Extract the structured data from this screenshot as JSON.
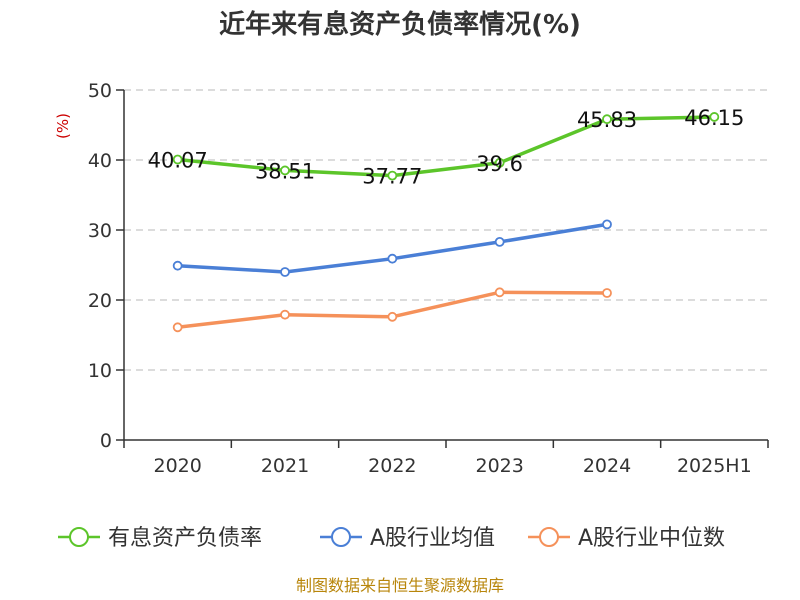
{
  "chart_data": {
    "type": "line",
    "title": "近年来有息资产负债率情况(%)",
    "ylabel": "(%)",
    "xlabel": "",
    "ylim": [
      0,
      50
    ],
    "yticks": [
      0,
      10,
      20,
      30,
      40,
      50
    ],
    "categories": [
      "2020",
      "2021",
      "2022",
      "2023",
      "2024",
      "2025H1"
    ],
    "grid": "horizontal-dashed",
    "legend_position": "bottom",
    "series": [
      {
        "name": "有息资产负债率",
        "color": "#5cc52a",
        "values": [
          40.07,
          38.51,
          37.77,
          39.6,
          45.83,
          46.15
        ],
        "labels": [
          "40.07",
          "38.51",
          "37.77",
          "39.6",
          "45.83",
          "46.15"
        ],
        "show_labels": true
      },
      {
        "name": "A股行业均值",
        "color": "#4a7fd6",
        "values": [
          24.9,
          24.0,
          25.9,
          28.3,
          30.8,
          null
        ],
        "show_labels": false
      },
      {
        "name": "A股行业中位数",
        "color": "#f5915a",
        "values": [
          16.1,
          17.9,
          17.6,
          21.1,
          21.0,
          null
        ],
        "show_labels": false
      }
    ]
  },
  "footer": {
    "source": "制图数据来自恒生聚源数据库"
  }
}
